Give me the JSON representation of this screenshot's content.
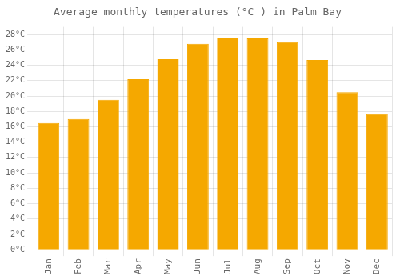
{
  "chart_data": {
    "type": "bar",
    "title": "Average monthly temperatures (°C ) in Palm Bay",
    "categories": [
      "Jan",
      "Feb",
      "Mar",
      "Apr",
      "May",
      "Jun",
      "Jul",
      "Aug",
      "Sep",
      "Oct",
      "Nov",
      "Dec"
    ],
    "values": [
      16.5,
      17.0,
      19.5,
      22.2,
      24.8,
      26.8,
      27.5,
      27.5,
      27.0,
      24.7,
      20.5,
      17.7
    ],
    "color": "#F5A800",
    "ylim": [
      0,
      29
    ],
    "yticks": [
      {
        "value": 0,
        "label": "0°C"
      },
      {
        "value": 2,
        "label": "2°C"
      },
      {
        "value": 4,
        "label": "4°C"
      },
      {
        "value": 6,
        "label": "6°C"
      },
      {
        "value": 8,
        "label": "8°C"
      },
      {
        "value": 10,
        "label": "10°C"
      },
      {
        "value": 12,
        "label": "12°C"
      },
      {
        "value": 14,
        "label": "14°C"
      },
      {
        "value": 16,
        "label": "16°C"
      },
      {
        "value": 18,
        "label": "18°C"
      },
      {
        "value": 20,
        "label": "20°C"
      },
      {
        "value": 22,
        "label": "22°C"
      },
      {
        "value": 24,
        "label": "24°C"
      },
      {
        "value": 26,
        "label": "26°C"
      },
      {
        "value": 28,
        "label": "28°C"
      }
    ],
    "grid": true
  }
}
